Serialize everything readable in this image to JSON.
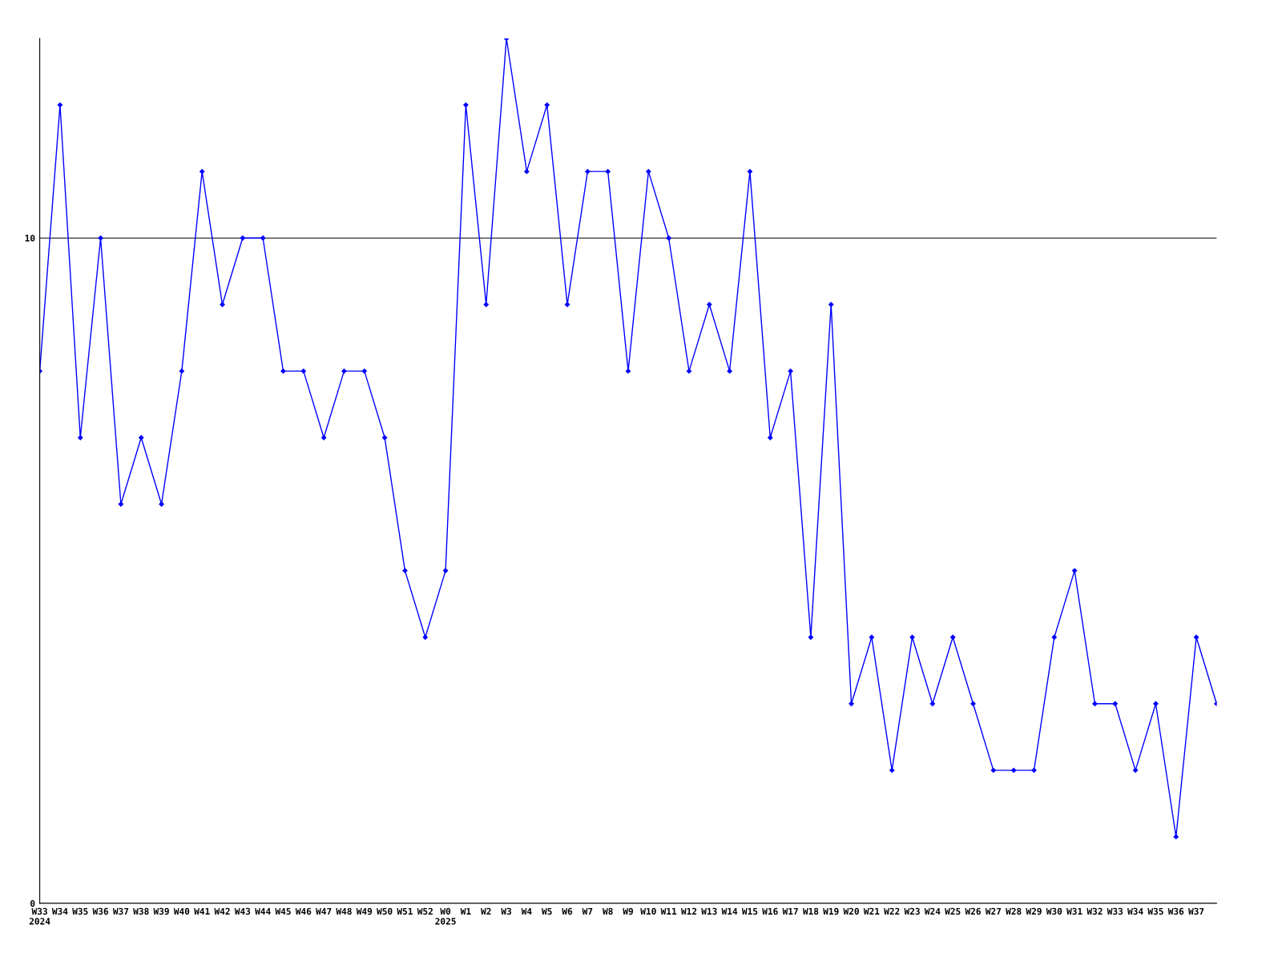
{
  "chart_data": {
    "type": "line",
    "categories": [
      "W33\n2024",
      "W34",
      "W35",
      "W36",
      "W37",
      "W38",
      "W39",
      "W40",
      "W41",
      "W42",
      "W43",
      "W44",
      "W45",
      "W46",
      "W47",
      "W48",
      "W49",
      "W50",
      "W51",
      "W52",
      "W0\n2025",
      "W1",
      "W2",
      "W3",
      "W4",
      "W5",
      "W6",
      "W7",
      "W8",
      "W9",
      "W10",
      "W11",
      "W12",
      "W13",
      "W14",
      "W15",
      "W16",
      "W17",
      "W18",
      "W19",
      "W20",
      "W21",
      "W22",
      "W23",
      "W24",
      "W25",
      "W26",
      "W27",
      "W28",
      "W29",
      "W30",
      "W31",
      "W32",
      "W33",
      "W34",
      "W35",
      "W36",
      "W37",
      null
    ],
    "series": [
      {
        "color": "#0000ff",
        "values": [
          8,
          12,
          7,
          10,
          6,
          7,
          6,
          8,
          11,
          9,
          10,
          10,
          8,
          8,
          7,
          8,
          8,
          7,
          5,
          4,
          5,
          12,
          9,
          13,
          11,
          12,
          9,
          11,
          11,
          8,
          11,
          10,
          8,
          9,
          8,
          11,
          7,
          8,
          4,
          9,
          3,
          4,
          2,
          4,
          3,
          4,
          3,
          2,
          2,
          2,
          4,
          5,
          3,
          3,
          2,
          3,
          1,
          4,
          3
        ]
      }
    ],
    "ylim": [
      0,
      13
    ],
    "yticks": [
      0,
      10
    ],
    "grid": "y",
    "marker": "diamond",
    "line_style": "solid"
  }
}
